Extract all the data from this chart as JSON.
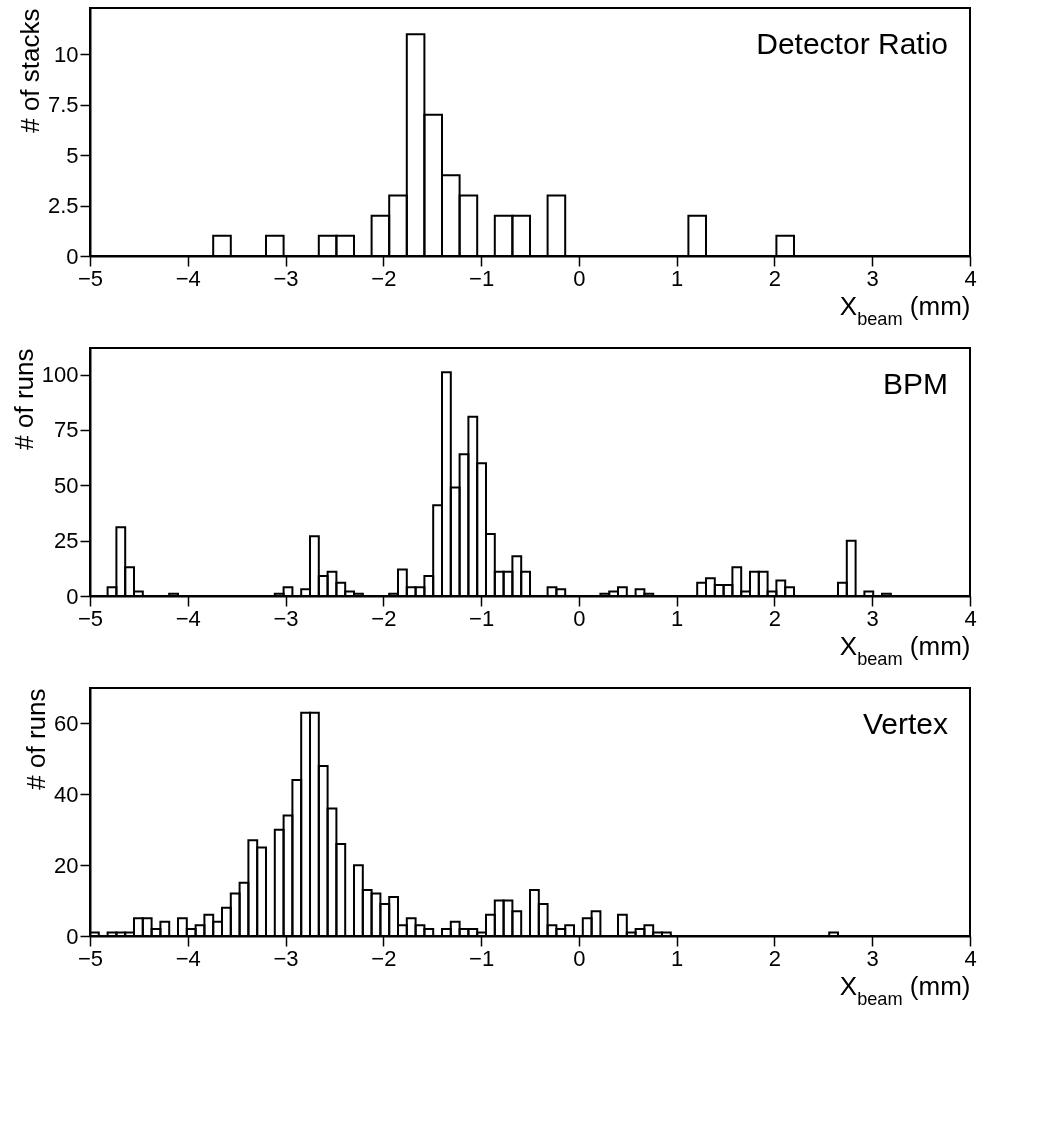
{
  "chart_data": [
    {
      "type": "histogram",
      "title": "Detector Ratio",
      "xlabel": "X$_{beam}$ (mm)",
      "ylabel": "# of stacks",
      "bins": [
        -5,
        -4.82,
        -4.64,
        -4.46,
        -4.28,
        -4.1,
        -3.92,
        -3.74,
        -3.56,
        -3.38,
        -3.2,
        -3.02,
        -2.84,
        -2.66,
        -2.48,
        -2.3,
        -2.12,
        -1.94,
        -1.76,
        -1.58,
        -1.4,
        -1.22,
        -1.04,
        -0.86,
        -0.68,
        -0.5,
        -0.32,
        -0.14,
        0.04,
        0.22,
        0.4,
        0.58,
        0.76,
        0.94,
        1.12,
        1.3,
        1.48,
        1.66,
        1.84,
        2.02,
        2.2,
        2.38,
        2.56,
        2.74,
        2.92,
        3.1,
        3.28,
        3.46,
        3.64,
        3.82,
        4
      ],
      "values": [
        0,
        0,
        0,
        0,
        0,
        0,
        0,
        1,
        0,
        0,
        1,
        0,
        0,
        1,
        1,
        0,
        2,
        3,
        11,
        7,
        4,
        3,
        0,
        2,
        2,
        0,
        3,
        0,
        0,
        0,
        0,
        0,
        0,
        0,
        2,
        0,
        0,
        0,
        0,
        1,
        0,
        0,
        0,
        0,
        0,
        0,
        0,
        0,
        0,
        0
      ],
      "color": "#000000",
      "xlim": [
        -5,
        4
      ],
      "xticks": [
        -5,
        -4,
        -3,
        -2,
        -1,
        0,
        1,
        2,
        3,
        4
      ],
      "ylim": [
        0,
        12.3
      ],
      "yticks": [
        0,
        2.5,
        5,
        7.5,
        10
      ]
    },
    {
      "type": "histogram",
      "title": "BPM",
      "xlabel": "X$_{beam}$ (mm)",
      "ylabel": "# of runs",
      "bins": [
        -5,
        -4.91,
        -4.82,
        -4.73,
        -4.64,
        -4.55,
        -4.46,
        -4.37,
        -4.28,
        -4.19,
        -4.1,
        -4.01,
        -3.92,
        -3.83,
        -3.74,
        -3.65,
        -3.56,
        -3.47,
        -3.38,
        -3.29,
        -3.2,
        -3.11,
        -3.02,
        -2.93,
        -2.84,
        -2.75,
        -2.66,
        -2.57,
        -2.48,
        -2.39,
        -2.3,
        -2.21,
        -2.12,
        -2.03,
        -1.94,
        -1.85,
        -1.76,
        -1.67,
        -1.58,
        -1.49,
        -1.4,
        -1.31,
        -1.22,
        -1.13,
        -1.04,
        -0.95,
        -0.86,
        -0.77,
        -0.68,
        -0.59,
        -0.5,
        -0.41,
        -0.32,
        -0.23,
        -0.14,
        -0.05,
        0.04,
        0.13,
        0.22,
        0.31,
        0.4,
        0.49,
        0.58,
        0.67,
        0.76,
        0.85,
        0.94,
        1.03,
        1.12,
        1.21,
        1.3,
        1.39,
        1.48,
        1.57,
        1.66,
        1.75,
        1.84,
        1.93,
        2.02,
        2.11,
        2.2,
        2.29,
        2.38,
        2.47,
        2.56,
        2.65,
        2.74,
        2.83,
        2.92,
        3.01,
        3.1,
        3.19,
        3.28,
        3.37,
        3.46,
        3.55,
        3.64,
        3.73,
        3.82,
        3.91,
        4
      ],
      "values": [
        0,
        0,
        4,
        31,
        13,
        2,
        0,
        0,
        0,
        1,
        0,
        0,
        0,
        0,
        0,
        0,
        0,
        0,
        0,
        0,
        0,
        1,
        4,
        0,
        3,
        27,
        9,
        11,
        6,
        2,
        1,
        0,
        0,
        0,
        1,
        12,
        4,
        4,
        9,
        41,
        101,
        49,
        64,
        81,
        60,
        28,
        11,
        11,
        18,
        11,
        0,
        0,
        4,
        3,
        0,
        0,
        0,
        0,
        1,
        2,
        4,
        0,
        3,
        1,
        0,
        0,
        0,
        0,
        0,
        6,
        8,
        5,
        5,
        13,
        2,
        11,
        11,
        2,
        7,
        4,
        0,
        0,
        0,
        0,
        0,
        6,
        25,
        0,
        2,
        0,
        1,
        0,
        0,
        0,
        0,
        0,
        0,
        0,
        0,
        0
      ],
      "color": "#000000",
      "xlim": [
        -5,
        4
      ],
      "xticks": [
        -5,
        -4,
        -3,
        -2,
        -1,
        0,
        1,
        2,
        3,
        4
      ],
      "ylim": [
        0,
        112
      ],
      "yticks": [
        0,
        25,
        50,
        75,
        100
      ]
    },
    {
      "type": "histogram",
      "title": "Vertex",
      "xlabel": "X$_{beam}$ (mm)",
      "ylabel": "# of runs",
      "bins": [
        -5,
        -4.91,
        -4.82,
        -4.73,
        -4.64,
        -4.55,
        -4.46,
        -4.37,
        -4.28,
        -4.19,
        -4.1,
        -4.01,
        -3.92,
        -3.83,
        -3.74,
        -3.65,
        -3.56,
        -3.47,
        -3.38,
        -3.29,
        -3.2,
        -3.11,
        -3.02,
        -2.93,
        -2.84,
        -2.75,
        -2.66,
        -2.57,
        -2.48,
        -2.39,
        -2.3,
        -2.21,
        -2.12,
        -2.03,
        -1.94,
        -1.85,
        -1.76,
        -1.67,
        -1.58,
        -1.49,
        -1.4,
        -1.31,
        -1.22,
        -1.13,
        -1.04,
        -0.95,
        -0.86,
        -0.77,
        -0.68,
        -0.59,
        -0.5,
        -0.41,
        -0.32,
        -0.23,
        -0.14,
        -0.05,
        0.04,
        0.13,
        0.22,
        0.31,
        0.4,
        0.49,
        0.58,
        0.67,
        0.76,
        0.85,
        0.94,
        1.03,
        1.12,
        1.21,
        1.3,
        1.39,
        1.48,
        1.57,
        1.66,
        1.75,
        1.84,
        1.93,
        2.02,
        2.11,
        2.2,
        2.29,
        2.38,
        2.47,
        2.56,
        2.65,
        2.74,
        2.83,
        2.92,
        3.01,
        3.1,
        3.19,
        3.28,
        3.37,
        3.46,
        3.55,
        3.64,
        3.73,
        3.82,
        3.91,
        4
      ],
      "values": [
        1,
        0,
        1,
        1,
        1,
        5,
        5,
        2,
        4,
        0,
        5,
        2,
        3,
        6,
        4,
        8,
        12,
        15,
        27,
        25,
        0,
        30,
        34,
        44,
        63,
        63,
        48,
        36,
        26,
        0,
        20,
        13,
        12,
        9,
        11,
        3,
        5,
        3,
        2,
        0,
        2,
        4,
        2,
        2,
        1,
        6,
        10,
        10,
        7,
        0,
        13,
        9,
        3,
        2,
        3,
        0,
        5,
        7,
        0,
        0,
        6,
        1,
        2,
        3,
        1,
        1,
        0,
        0,
        0,
        0,
        0,
        0,
        0,
        0,
        0,
        0,
        0,
        0,
        0,
        0,
        0,
        0,
        0,
        0,
        1,
        0,
        0,
        0,
        0,
        0,
        0,
        0,
        0,
        0,
        0,
        0,
        0,
        0,
        0,
        0
      ],
      "color": "#000000",
      "xlim": [
        -5,
        4
      ],
      "xticks": [
        -5,
        -4,
        -3,
        -2,
        -1,
        0,
        1,
        2,
        3,
        4
      ],
      "ylim": [
        0,
        70
      ],
      "yticks": [
        0,
        20,
        40,
        60
      ]
    }
  ]
}
